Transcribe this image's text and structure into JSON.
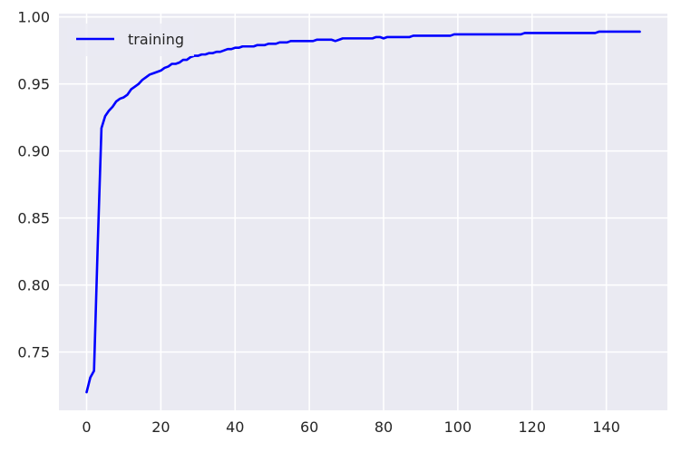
{
  "chart_data": {
    "type": "line",
    "title": "",
    "xlabel": "",
    "ylabel": "",
    "xlim": [
      -7.45,
      156.45
    ],
    "ylim": [
      0.7065,
      1.0025
    ],
    "x_ticks": [
      0,
      20,
      40,
      60,
      80,
      100,
      120,
      140
    ],
    "y_ticks": [
      0.75,
      0.8,
      0.85,
      0.9,
      0.95,
      1.0
    ],
    "x_tick_labels": [
      "0",
      "20",
      "40",
      "60",
      "80",
      "100",
      "120",
      "140"
    ],
    "y_tick_labels": [
      "0.75",
      "0.80",
      "0.85",
      "0.90",
      "0.95",
      "1.00"
    ],
    "grid": true,
    "legend_position": "top-left",
    "background_color": "#EAEAF2",
    "grid_color": "#FFFFFF",
    "series": [
      {
        "name": "training",
        "color": "#0000FF",
        "x_start": 0,
        "x_step": 1,
        "values": [
          0.72,
          0.731,
          0.736,
          0.83,
          0.917,
          0.926,
          0.93,
          0.933,
          0.937,
          0.939,
          0.94,
          0.942,
          0.946,
          0.948,
          0.95,
          0.953,
          0.955,
          0.957,
          0.958,
          0.959,
          0.96,
          0.962,
          0.963,
          0.965,
          0.965,
          0.966,
          0.968,
          0.968,
          0.97,
          0.971,
          0.971,
          0.972,
          0.972,
          0.973,
          0.973,
          0.974,
          0.974,
          0.975,
          0.976,
          0.976,
          0.977,
          0.977,
          0.978,
          0.978,
          0.978,
          0.978,
          0.979,
          0.979,
          0.979,
          0.98,
          0.98,
          0.98,
          0.981,
          0.981,
          0.981,
          0.982,
          0.982,
          0.982,
          0.982,
          0.982,
          0.982,
          0.982,
          0.983,
          0.983,
          0.983,
          0.983,
          0.983,
          0.982,
          0.983,
          0.984,
          0.984,
          0.984,
          0.984,
          0.984,
          0.984,
          0.984,
          0.984,
          0.984,
          0.985,
          0.985,
          0.984,
          0.985,
          0.985,
          0.985,
          0.985,
          0.985,
          0.985,
          0.985,
          0.986,
          0.986,
          0.986,
          0.986,
          0.986,
          0.986,
          0.986,
          0.986,
          0.986,
          0.986,
          0.986,
          0.987,
          0.987,
          0.987,
          0.987,
          0.987,
          0.987,
          0.987,
          0.987,
          0.987,
          0.987,
          0.987,
          0.987,
          0.987,
          0.987,
          0.987,
          0.987,
          0.987,
          0.987,
          0.987,
          0.988,
          0.988,
          0.988,
          0.988,
          0.988,
          0.988,
          0.988,
          0.988,
          0.988,
          0.988,
          0.988,
          0.988,
          0.988,
          0.988,
          0.988,
          0.988,
          0.988,
          0.988,
          0.988,
          0.988,
          0.989,
          0.989,
          0.989,
          0.989,
          0.989,
          0.989,
          0.989,
          0.989,
          0.989,
          0.989,
          0.989,
          0.989
        ]
      }
    ]
  }
}
